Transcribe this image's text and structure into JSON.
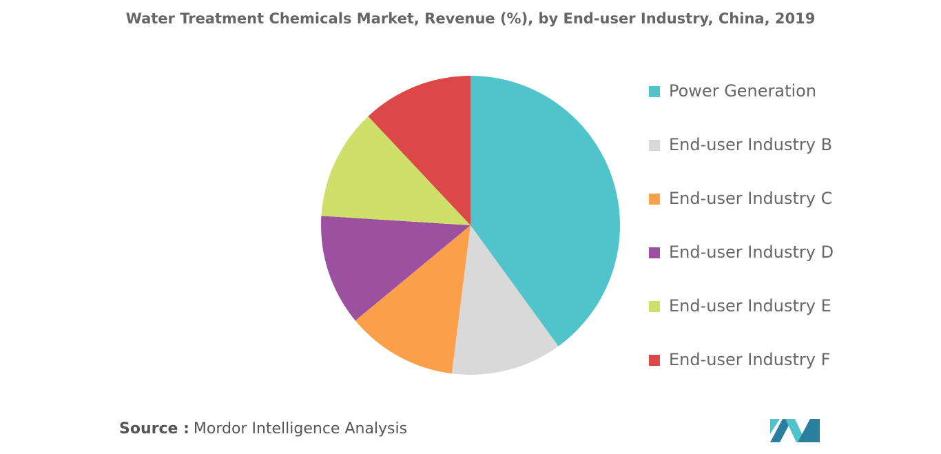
{
  "chart_data": {
    "type": "pie",
    "title": "Water Treatment Chemicals Market, Revenue (%), by End-user Industry, China, 2019",
    "categories": [
      "Power Generation",
      "End-user Industry B",
      "End-user Industry C",
      "End-user Industry D",
      "End-user Industry E",
      "End-user Industry F"
    ],
    "values": [
      40,
      12,
      12,
      12,
      12,
      12
    ],
    "colors": [
      "#50c4ca",
      "#d9d9d9",
      "#fba04a",
      "#9b50a0",
      "#cfe06a",
      "#dc4848"
    ],
    "legend": "right"
  },
  "footer": {
    "source_label": "Source :",
    "source": "Mordor Intelligence Analysis"
  }
}
